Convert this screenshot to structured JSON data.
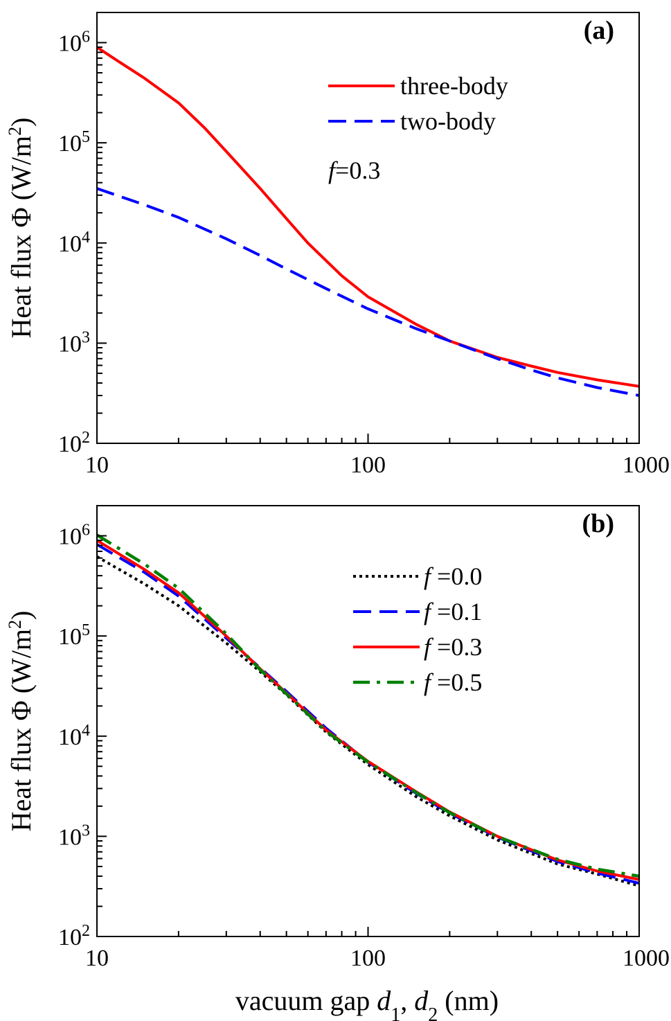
{
  "figure": {
    "xlabel_main": "vacuum gap ",
    "xlabel_d": "d",
    "xlabel_sub1": "1",
    "xlabel_sep": ", ",
    "xlabel_sub2": "2",
    "xlabel_unit": " (nm)"
  },
  "chart_data": [
    {
      "type": "line",
      "panel_label": "(a)",
      "ylabel_main": "Heat flux Φ (W/m",
      "ylabel_sup": "2",
      "ylabel_close": ")",
      "xscale": "log",
      "yscale": "log",
      "xlim": [
        10,
        1000
      ],
      "ylim": [
        100,
        2000000
      ],
      "xticks": [
        10,
        100,
        1000
      ],
      "xtick_labels": [
        "10",
        "100",
        "1000"
      ],
      "yticks": [
        100,
        1000,
        10000,
        100000,
        1000000
      ],
      "ytick_base": "10",
      "ytick_exponents": [
        "2",
        "3",
        "4",
        "5",
        "6"
      ],
      "grid": false,
      "legend_position": "top-right",
      "annotation": {
        "italic": "f",
        "text": "=0.3"
      },
      "series": [
        {
          "name": "three-body",
          "color": "#ff0000",
          "style": "solid",
          "x": [
            10,
            12,
            15,
            20,
            25,
            30,
            40,
            50,
            60,
            80,
            100,
            150,
            200,
            300,
            400,
            500,
            700,
            1000
          ],
          "y": [
            900000,
            650000,
            440000,
            250000,
            140000,
            82000,
            35000,
            17500,
            10000,
            4700,
            2900,
            1550,
            1050,
            720,
            590,
            510,
            430,
            370
          ]
        },
        {
          "name": "two-body",
          "color": "#0000ff",
          "style": "dashed",
          "x": [
            10,
            15,
            20,
            30,
            40,
            50,
            70,
            100,
            150,
            200,
            300,
            400,
            500,
            700,
            1000
          ],
          "y": [
            35000,
            24000,
            18000,
            11000,
            7500,
            5500,
            3500,
            2200,
            1400,
            1050,
            700,
            540,
            450,
            360,
            300
          ]
        }
      ]
    },
    {
      "type": "line",
      "panel_label": "(b)",
      "ylabel_main": "Heat flux Φ (W/m",
      "ylabel_sup": "2",
      "ylabel_close": ")",
      "xscale": "log",
      "yscale": "log",
      "xlim": [
        10,
        1000
      ],
      "ylim": [
        100,
        2000000
      ],
      "xticks": [
        10,
        100,
        1000
      ],
      "xtick_labels": [
        "10",
        "100",
        "1000"
      ],
      "yticks": [
        100,
        1000,
        10000,
        100000,
        1000000
      ],
      "ytick_base": "10",
      "ytick_exponents": [
        "2",
        "3",
        "4",
        "5",
        "6"
      ],
      "grid": false,
      "legend_position": "top-right",
      "series": [
        {
          "name": "f =0.0",
          "legend_italic": "f",
          "legend_text": " =0.0",
          "color": "#000000",
          "style": "dotted",
          "x": [
            10,
            15,
            20,
            30,
            40,
            50,
            70,
            100,
            150,
            200,
            300,
            500,
            700,
            1000
          ],
          "y": [
            620000,
            330000,
            200000,
            85000,
            44000,
            26000,
            11000,
            5200,
            2500,
            1600,
            920,
            530,
            420,
            320
          ]
        },
        {
          "name": "f =0.1",
          "legend_italic": "f",
          "legend_text": " =0.1",
          "color": "#0000ff",
          "style": "dashed",
          "x": [
            10,
            15,
            20,
            30,
            40,
            50,
            70,
            100,
            150,
            200,
            300,
            500,
            700,
            1000
          ],
          "y": [
            820000,
            430000,
            250000,
            95000,
            48000,
            28000,
            12000,
            5500,
            2700,
            1700,
            980,
            560,
            430,
            340
          ]
        },
        {
          "name": "f =0.3",
          "legend_italic": "f",
          "legend_text": " =0.3",
          "color": "#ff0000",
          "style": "solid",
          "x": [
            10,
            15,
            20,
            30,
            40,
            50,
            70,
            100,
            150,
            200,
            300,
            500,
            700,
            1000
          ],
          "y": [
            900000,
            460000,
            270000,
            100000,
            47000,
            27000,
            11500,
            5600,
            2800,
            1750,
            1000,
            580,
            450,
            370
          ]
        },
        {
          "name": "f =0.5",
          "legend_italic": "f",
          "legend_text": " =0.5",
          "color": "#008000",
          "style": "dashdot",
          "x": [
            10,
            15,
            20,
            30,
            40,
            50,
            70,
            100,
            150,
            200,
            300,
            500,
            700,
            1000
          ],
          "y": [
            1020000,
            520000,
            300000,
            105000,
            46000,
            26500,
            11200,
            5500,
            2750,
            1720,
            990,
            590,
            470,
            400
          ]
        }
      ]
    }
  ]
}
